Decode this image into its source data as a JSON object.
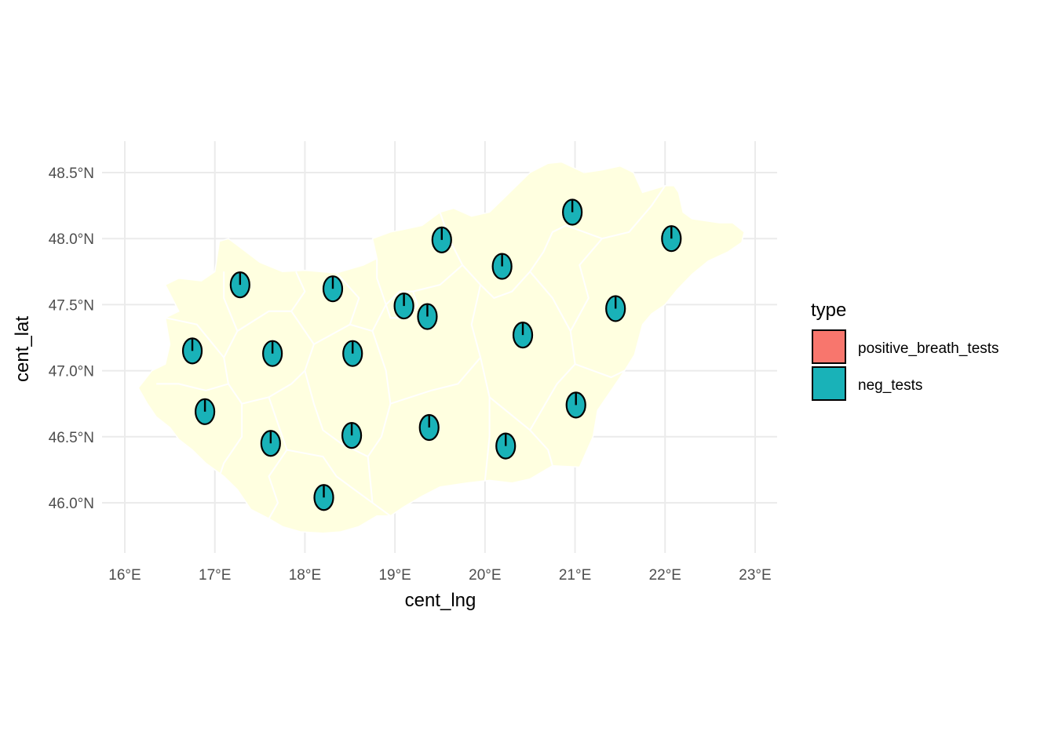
{
  "chart_data": {
    "type": "map",
    "xlabel": "cent_lng",
    "ylabel": "cent_lat",
    "xlim": [
      15.9,
      23.25
    ],
    "ylim": [
      45.6,
      48.75
    ],
    "x_ticks": [
      {
        "value": 16,
        "label": "16°E"
      },
      {
        "value": 17,
        "label": "17°E"
      },
      {
        "value": 18,
        "label": "18°E"
      },
      {
        "value": 19,
        "label": "19°E"
      },
      {
        "value": 20,
        "label": "20°E"
      },
      {
        "value": 21,
        "label": "21°E"
      },
      {
        "value": 22,
        "label": "22°E"
      },
      {
        "value": 23,
        "label": "23°E"
      }
    ],
    "y_ticks": [
      {
        "value": 46.0,
        "label": "46.0°N"
      },
      {
        "value": 46.5,
        "label": "46.5°N"
      },
      {
        "value": 47.0,
        "label": "47.0°N"
      },
      {
        "value": 47.5,
        "label": "47.5°N"
      },
      {
        "value": 48.0,
        "label": "48.0°N"
      },
      {
        "value": 48.5,
        "label": "48.5°N"
      }
    ],
    "grid": true,
    "map_fill": "#ffffe0",
    "legend": {
      "title": "type",
      "position": "right",
      "items": [
        {
          "label": "positive_breath_tests",
          "color": "#f8766d"
        },
        {
          "label": "neg_tests",
          "color": "#19b2b8"
        }
      ]
    },
    "points": [
      {
        "lng": 16.75,
        "lat": 47.15,
        "positive_breath_tests": 0.0,
        "neg_tests": 1.0
      },
      {
        "lng": 16.89,
        "lat": 46.69,
        "positive_breath_tests": 0.0,
        "neg_tests": 1.0
      },
      {
        "lng": 17.28,
        "lat": 47.65,
        "positive_breath_tests": 0.0,
        "neg_tests": 1.0
      },
      {
        "lng": 17.64,
        "lat": 47.13,
        "positive_breath_tests": 0.0,
        "neg_tests": 1.0
      },
      {
        "lng": 17.62,
        "lat": 46.45,
        "positive_breath_tests": 0.0,
        "neg_tests": 1.0
      },
      {
        "lng": 18.21,
        "lat": 46.04,
        "positive_breath_tests": 0.0,
        "neg_tests": 1.0
      },
      {
        "lng": 18.31,
        "lat": 47.62,
        "positive_breath_tests": 0.0,
        "neg_tests": 1.0
      },
      {
        "lng": 18.53,
        "lat": 47.13,
        "positive_breath_tests": 0.0,
        "neg_tests": 1.0
      },
      {
        "lng": 18.52,
        "lat": 46.51,
        "positive_breath_tests": 0.0,
        "neg_tests": 1.0
      },
      {
        "lng": 19.1,
        "lat": 47.49,
        "positive_breath_tests": 0.0,
        "neg_tests": 1.0
      },
      {
        "lng": 19.36,
        "lat": 47.41,
        "positive_breath_tests": 0.0,
        "neg_tests": 1.0
      },
      {
        "lng": 19.38,
        "lat": 46.57,
        "positive_breath_tests": 0.0,
        "neg_tests": 1.0
      },
      {
        "lng": 19.52,
        "lat": 47.99,
        "positive_breath_tests": 0.0,
        "neg_tests": 1.0
      },
      {
        "lng": 20.19,
        "lat": 47.79,
        "positive_breath_tests": 0.0,
        "neg_tests": 1.0
      },
      {
        "lng": 20.42,
        "lat": 47.27,
        "positive_breath_tests": 0.0,
        "neg_tests": 1.0
      },
      {
        "lng": 20.23,
        "lat": 46.43,
        "positive_breath_tests": 0.0,
        "neg_tests": 1.0
      },
      {
        "lng": 20.97,
        "lat": 48.2,
        "positive_breath_tests": 0.0,
        "neg_tests": 1.0
      },
      {
        "lng": 21.01,
        "lat": 46.74,
        "positive_breath_tests": 0.0,
        "neg_tests": 1.0
      },
      {
        "lng": 21.45,
        "lat": 47.47,
        "positive_breath_tests": 0.0,
        "neg_tests": 1.0
      },
      {
        "lng": 22.07,
        "lat": 48.0,
        "positive_breath_tests": 0.0,
        "neg_tests": 1.0
      }
    ],
    "outline": [
      [
        16.15,
        46.87
      ],
      [
        16.3,
        47.0
      ],
      [
        16.45,
        47.05
      ],
      [
        16.5,
        47.2
      ],
      [
        16.45,
        47.4
      ],
      [
        16.6,
        47.45
      ],
      [
        16.45,
        47.65
      ],
      [
        16.6,
        47.7
      ],
      [
        16.85,
        47.68
      ],
      [
        17.0,
        47.75
      ],
      [
        17.05,
        47.98
      ],
      [
        17.15,
        48.0
      ],
      [
        17.25,
        47.95
      ],
      [
        17.5,
        47.82
      ],
      [
        17.75,
        47.75
      ],
      [
        18.0,
        47.76
      ],
      [
        18.35,
        47.74
      ],
      [
        18.65,
        47.8
      ],
      [
        18.8,
        47.85
      ],
      [
        18.75,
        48.0
      ],
      [
        18.95,
        48.05
      ],
      [
        19.1,
        48.07
      ],
      [
        19.3,
        48.1
      ],
      [
        19.5,
        48.2
      ],
      [
        19.65,
        48.23
      ],
      [
        19.85,
        48.17
      ],
      [
        20.05,
        48.2
      ],
      [
        20.2,
        48.3
      ],
      [
        20.35,
        48.4
      ],
      [
        20.5,
        48.5
      ],
      [
        20.7,
        48.57
      ],
      [
        20.85,
        48.58
      ],
      [
        21.1,
        48.5
      ],
      [
        21.3,
        48.52
      ],
      [
        21.5,
        48.55
      ],
      [
        21.65,
        48.5
      ],
      [
        21.75,
        48.35
      ],
      [
        22.0,
        48.4
      ],
      [
        22.1,
        48.4
      ],
      [
        22.15,
        48.35
      ],
      [
        22.2,
        48.2
      ],
      [
        22.3,
        48.15
      ],
      [
        22.6,
        48.12
      ],
      [
        22.75,
        48.12
      ],
      [
        22.88,
        48.05
      ],
      [
        22.85,
        47.97
      ],
      [
        22.7,
        47.9
      ],
      [
        22.48,
        47.83
      ],
      [
        22.3,
        47.73
      ],
      [
        22.13,
        47.61
      ],
      [
        22.0,
        47.5
      ],
      [
        21.85,
        47.43
      ],
      [
        21.75,
        47.35
      ],
      [
        21.66,
        47.12
      ],
      [
        21.55,
        47.0
      ],
      [
        21.4,
        46.85
      ],
      [
        21.25,
        46.7
      ],
      [
        21.2,
        46.5
      ],
      [
        21.05,
        46.27
      ],
      [
        20.75,
        46.28
      ],
      [
        20.5,
        46.18
      ],
      [
        20.3,
        46.15
      ],
      [
        20.05,
        46.17
      ],
      [
        19.8,
        46.15
      ],
      [
        19.5,
        46.12
      ],
      [
        19.3,
        46.05
      ],
      [
        19.1,
        45.97
      ],
      [
        18.95,
        45.9
      ],
      [
        18.8,
        45.9
      ],
      [
        18.6,
        45.82
      ],
      [
        18.4,
        45.78
      ],
      [
        18.2,
        45.77
      ],
      [
        17.95,
        45.78
      ],
      [
        17.75,
        45.82
      ],
      [
        17.6,
        45.88
      ],
      [
        17.4,
        45.95
      ],
      [
        17.25,
        46.1
      ],
      [
        17.1,
        46.2
      ],
      [
        16.9,
        46.3
      ],
      [
        16.75,
        46.4
      ],
      [
        16.6,
        46.48
      ],
      [
        16.5,
        46.57
      ],
      [
        16.35,
        46.65
      ],
      [
        16.25,
        46.75
      ],
      [
        16.15,
        46.87
      ]
    ],
    "county_borders": [
      [
        [
          16.45,
          47.4
        ],
        [
          16.8,
          47.35
        ],
        [
          17.1,
          47.1
        ],
        [
          17.15,
          46.9
        ],
        [
          16.9,
          46.85
        ],
        [
          16.6,
          46.9
        ],
        [
          16.35,
          46.9
        ]
      ],
      [
        [
          17.1,
          47.1
        ],
        [
          17.25,
          47.3
        ],
        [
          17.1,
          47.55
        ],
        [
          17.1,
          47.75
        ]
      ],
      [
        [
          17.25,
          47.3
        ],
        [
          17.6,
          47.45
        ],
        [
          17.85,
          47.45
        ],
        [
          18.0,
          47.6
        ],
        [
          17.9,
          47.75
        ]
      ],
      [
        [
          17.85,
          47.45
        ],
        [
          18.1,
          47.2
        ],
        [
          18.0,
          47.0
        ],
        [
          18.1,
          46.75
        ],
        [
          18.2,
          46.55
        ],
        [
          18.4,
          46.45
        ],
        [
          18.7,
          46.35
        ]
      ],
      [
        [
          17.15,
          46.9
        ],
        [
          17.3,
          46.75
        ],
        [
          17.6,
          46.8
        ],
        [
          17.85,
          46.9
        ],
        [
          18.0,
          47.0
        ]
      ],
      [
        [
          17.3,
          46.75
        ],
        [
          17.3,
          46.5
        ],
        [
          17.1,
          46.3
        ],
        [
          17.05,
          46.2
        ]
      ],
      [
        [
          17.6,
          46.8
        ],
        [
          17.7,
          46.6
        ],
        [
          17.8,
          46.4
        ],
        [
          17.6,
          46.2
        ],
        [
          17.7,
          46.0
        ],
        [
          17.6,
          45.88
        ]
      ],
      [
        [
          17.8,
          46.4
        ],
        [
          18.2,
          46.35
        ],
        [
          18.35,
          46.2
        ],
        [
          18.55,
          46.1
        ],
        [
          18.75,
          46.0
        ],
        [
          18.95,
          45.9
        ]
      ],
      [
        [
          18.1,
          47.2
        ],
        [
          18.5,
          47.35
        ],
        [
          18.75,
          47.3
        ],
        [
          18.9,
          47.5
        ],
        [
          18.8,
          47.7
        ],
        [
          18.8,
          47.85
        ]
      ],
      [
        [
          18.5,
          47.35
        ],
        [
          18.6,
          47.55
        ],
        [
          18.35,
          47.74
        ]
      ],
      [
        [
          18.75,
          47.3
        ],
        [
          18.9,
          47.0
        ],
        [
          18.95,
          46.75
        ],
        [
          18.85,
          46.5
        ],
        [
          18.7,
          46.35
        ],
        [
          18.75,
          46.0
        ]
      ],
      [
        [
          18.9,
          47.5
        ],
        [
          19.05,
          47.6
        ],
        [
          19.2,
          47.6
        ],
        [
          19.25,
          47.5
        ],
        [
          19.15,
          47.4
        ],
        [
          18.95,
          47.4
        ],
        [
          18.9,
          47.5
        ]
      ],
      [
        [
          19.2,
          47.6
        ],
        [
          19.5,
          47.65
        ],
        [
          19.75,
          47.8
        ],
        [
          19.6,
          48.0
        ],
        [
          19.5,
          48.2
        ]
      ],
      [
        [
          19.75,
          47.8
        ],
        [
          19.95,
          47.65
        ],
        [
          20.1,
          47.55
        ],
        [
          20.3,
          47.6
        ],
        [
          20.5,
          47.75
        ],
        [
          20.65,
          47.9
        ],
        [
          20.75,
          48.05
        ],
        [
          20.9,
          48.1
        ]
      ],
      [
        [
          19.95,
          47.65
        ],
        [
          19.85,
          47.35
        ],
        [
          19.95,
          47.1
        ],
        [
          20.05,
          46.8
        ],
        [
          20.05,
          46.5
        ],
        [
          20.0,
          46.17
        ]
      ],
      [
        [
          18.95,
          46.75
        ],
        [
          19.4,
          46.85
        ],
        [
          19.7,
          46.9
        ],
        [
          19.95,
          47.1
        ]
      ],
      [
        [
          20.05,
          46.8
        ],
        [
          20.5,
          46.55
        ],
        [
          20.7,
          46.4
        ],
        [
          20.75,
          46.28
        ]
      ],
      [
        [
          20.5,
          47.75
        ],
        [
          20.75,
          47.55
        ],
        [
          20.95,
          47.3
        ],
        [
          21.0,
          47.05
        ],
        [
          20.8,
          46.9
        ],
        [
          20.5,
          46.55
        ]
      ],
      [
        [
          20.95,
          47.3
        ],
        [
          21.15,
          47.55
        ],
        [
          21.05,
          47.8
        ],
        [
          21.3,
          48.0
        ],
        [
          21.6,
          48.05
        ],
        [
          21.85,
          48.25
        ],
        [
          22.0,
          48.4
        ]
      ],
      [
        [
          21.0,
          47.05
        ],
        [
          21.4,
          46.95
        ],
        [
          21.55,
          47.0
        ]
      ],
      [
        [
          20.9,
          48.1
        ],
        [
          21.3,
          48.0
        ]
      ]
    ]
  }
}
